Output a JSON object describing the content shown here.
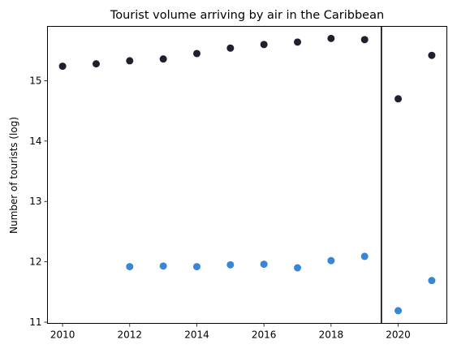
{
  "chart_data": {
    "type": "scatter",
    "title": "Tourist volume arriving by air in the Caribbean",
    "xlabel": "",
    "ylabel": "Number of tourists (log)",
    "xlim": [
      2009.55,
      2021.45
    ],
    "ylim": [
      10.98,
      15.9
    ],
    "xticks": [
      2010,
      2012,
      2014,
      2016,
      2018,
      2020
    ],
    "yticks": [
      11,
      12,
      13,
      14,
      15
    ],
    "grid": false,
    "legend": "none",
    "vline_x": 2019.5,
    "vline_color": "#000000",
    "series": [
      {
        "color": "#221f2c",
        "x": [
          2010,
          2011,
          2012,
          2013,
          2014,
          2015,
          2016,
          2017,
          2018,
          2019,
          2020,
          2021
        ],
        "y": [
          15.24,
          15.28,
          15.33,
          15.36,
          15.45,
          15.54,
          15.6,
          15.64,
          15.7,
          15.68,
          14.7,
          15.42
        ]
      },
      {
        "color": "#3a86d6",
        "x": [
          2012,
          2013,
          2014,
          2015,
          2016,
          2017,
          2018,
          2019,
          2020,
          2021
        ],
        "y": [
          11.92,
          11.93,
          11.92,
          11.95,
          11.96,
          11.9,
          12.02,
          12.09,
          11.19,
          11.69
        ]
      }
    ]
  }
}
